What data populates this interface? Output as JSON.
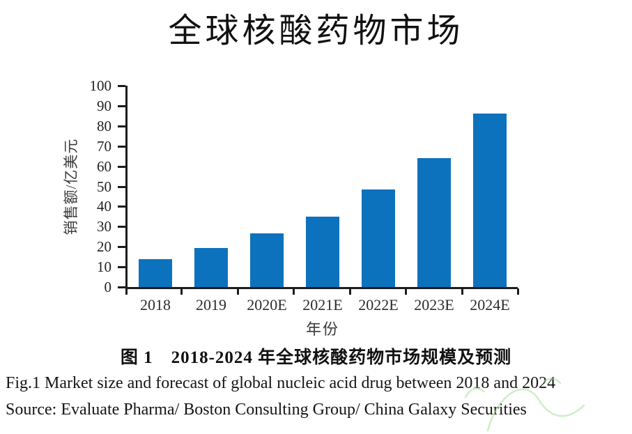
{
  "title": "全球核酸药物市场",
  "chart_data": {
    "type": "bar",
    "title": "全球核酸药物市场",
    "categories": [
      "2018",
      "2019",
      "2020E",
      "2021E",
      "2022E",
      "2023E",
      "2024E"
    ],
    "values": [
      14,
      19.5,
      26.5,
      35,
      48.5,
      64,
      86
    ],
    "xlabel": "年份",
    "ylabel": "销售额/亿美元",
    "ylim": [
      0,
      100
    ],
    "yticks": [
      0,
      10,
      20,
      30,
      40,
      50,
      60,
      70,
      80,
      90,
      100
    ],
    "grid": false,
    "legend_position": "none",
    "bar_color": "#0d72bd",
    "axis_color": "#1c1c1c"
  },
  "caption": {
    "figure_zh": "图 1　2018-2024 年全球核酸药物市场规模及预测",
    "figure_en": "Fig.1 Market size and forecast of global nucleic acid drug between 2018 and 2024",
    "source": "Source: Evaluate Pharma/ Boston Consulting Group/ China Galaxy Securities"
  },
  "watermark_color": "#a9e09a"
}
